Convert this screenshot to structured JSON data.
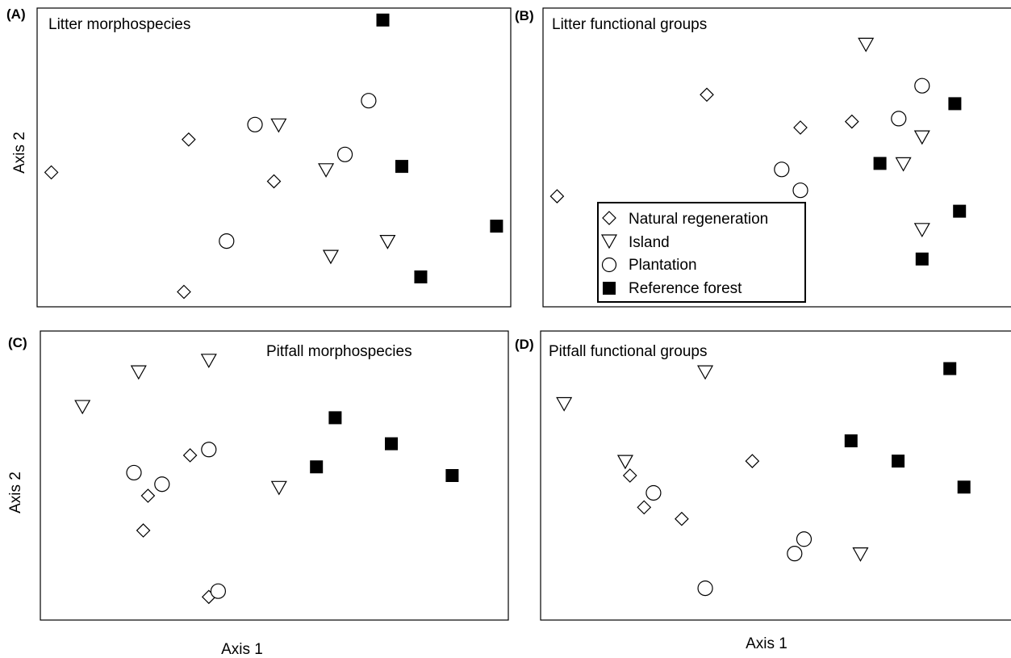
{
  "figure": {
    "shared_xlabel": "Axis 1",
    "shared_ylabel": "Axis 2"
  },
  "legend": [
    {
      "label": "Natural regeneration",
      "marker": "diamond-icon"
    },
    {
      "label": "Island",
      "marker": "down-triangle-icon"
    },
    {
      "label": "Plantation",
      "marker": "circle-icon"
    },
    {
      "label": "Reference forest",
      "marker": "filled-square-icon"
    }
  ],
  "chart_data": [
    {
      "type": "scatter",
      "panel": "(A)",
      "title": "Litter morphospecies",
      "xlabel": "",
      "ylabel": "Axis 2",
      "xlim": [
        0,
        100
      ],
      "ylim": [
        0,
        100
      ],
      "series": [
        {
          "name": "Natural regeneration",
          "marker": "diamond",
          "points": [
            [
              3,
              45
            ],
            [
              32,
              56
            ],
            [
              50,
              42
            ],
            [
              31,
              5
            ]
          ]
        },
        {
          "name": "Island",
          "marker": "triangle",
          "points": [
            [
              51,
              61
            ],
            [
              61,
              46
            ],
            [
              62,
              17
            ],
            [
              74,
              22
            ]
          ]
        },
        {
          "name": "Plantation",
          "marker": "circle",
          "points": [
            [
              46,
              61
            ],
            [
              65,
              51
            ],
            [
              70,
              69
            ],
            [
              40,
              22
            ]
          ]
        },
        {
          "name": "Reference forest",
          "marker": "square",
          "points": [
            [
              73,
              96
            ],
            [
              77,
              47
            ],
            [
              81,
              10
            ],
            [
              97,
              27
            ]
          ]
        }
      ]
    },
    {
      "type": "scatter",
      "panel": "(B)",
      "title": "Litter functional groups",
      "xlabel": "",
      "ylabel": "",
      "xlim": [
        0,
        100
      ],
      "ylim": [
        0,
        100
      ],
      "series": [
        {
          "name": "Natural regeneration",
          "marker": "diamond",
          "points": [
            [
              3,
              37
            ],
            [
              35,
              71
            ],
            [
              55,
              60
            ],
            [
              66,
              62
            ]
          ]
        },
        {
          "name": "Island",
          "marker": "triangle",
          "points": [
            [
              69,
              88
            ],
            [
              81,
              57
            ],
            [
              77,
              48
            ],
            [
              81,
              26
            ]
          ]
        },
        {
          "name": "Plantation",
          "marker": "circle",
          "points": [
            [
              51,
              46
            ],
            [
              55,
              39
            ],
            [
              76,
              63
            ],
            [
              81,
              74
            ]
          ]
        },
        {
          "name": "Reference forest",
          "marker": "square",
          "points": [
            [
              72,
              48
            ],
            [
              88,
              68
            ],
            [
              89,
              32
            ],
            [
              81,
              16
            ]
          ]
        }
      ]
    },
    {
      "type": "scatter",
      "panel": "(C)",
      "title": "Pitfall morphospecies",
      "xlabel": "Axis 1",
      "ylabel": "Axis 2",
      "xlim": [
        0,
        100
      ],
      "ylim": [
        0,
        100
      ],
      "series": [
        {
          "name": "Natural regeneration",
          "marker": "diamond",
          "points": [
            [
              32,
              57
            ],
            [
              23,
              43
            ],
            [
              22,
              31
            ],
            [
              36,
              8
            ]
          ]
        },
        {
          "name": "Island",
          "marker": "triangle",
          "points": [
            [
              9,
              74
            ],
            [
              21,
              86
            ],
            [
              36,
              90
            ],
            [
              51,
              46
            ]
          ]
        },
        {
          "name": "Plantation",
          "marker": "circle",
          "points": [
            [
              20,
              51
            ],
            [
              26,
              47
            ],
            [
              36,
              59
            ],
            [
              38,
              10
            ]
          ]
        },
        {
          "name": "Reference forest",
          "marker": "square",
          "points": [
            [
              63,
              70
            ],
            [
              59,
              53
            ],
            [
              75,
              61
            ],
            [
              88,
              50
            ]
          ]
        }
      ]
    },
    {
      "type": "scatter",
      "panel": "(D)",
      "title": "Pitfall functional groups",
      "xlabel": "Axis 1",
      "ylabel": "",
      "xlim": [
        0,
        100
      ],
      "ylim": [
        0,
        100
      ],
      "series": [
        {
          "name": "Natural regeneration",
          "marker": "diamond",
          "points": [
            [
              19,
              50
            ],
            [
              22,
              39
            ],
            [
              30,
              35
            ],
            [
              45,
              55
            ]
          ]
        },
        {
          "name": "Island",
          "marker": "triangle",
          "points": [
            [
              5,
              75
            ],
            [
              18,
              55
            ],
            [
              35,
              86
            ],
            [
              68,
              23
            ]
          ]
        },
        {
          "name": "Plantation",
          "marker": "circle",
          "points": [
            [
              24,
              44
            ],
            [
              35,
              11
            ],
            [
              54,
              23
            ],
            [
              56,
              28
            ]
          ]
        },
        {
          "name": "Reference forest",
          "marker": "square",
          "points": [
            [
              66,
              62
            ],
            [
              76,
              55
            ],
            [
              87,
              87
            ],
            [
              90,
              46
            ]
          ]
        }
      ]
    }
  ]
}
